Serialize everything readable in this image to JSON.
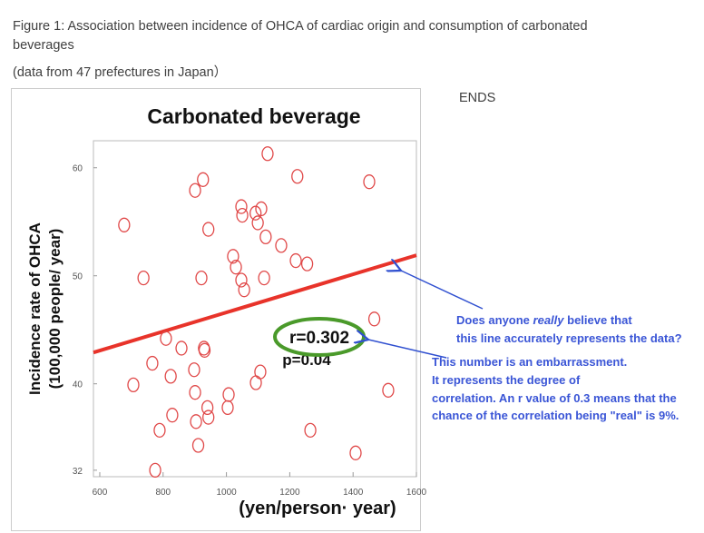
{
  "caption": [
    "Figure 1: Association between incidence of OHCA of cardiac origin and consumption of carbonated",
    "beverages"
  ],
  "source_note": "(data from 47 prefectures in Japan）",
  "side_note": "ENDS",
  "chart_data": {
    "type": "scatter",
    "title": "Carbonated beverage",
    "x_label": "(yen/person· year)",
    "y_label": [
      "Incidence rate of OHCA",
      "(100,000 people/ year)"
    ],
    "x": [
      677,
      738,
      1130,
      901,
      926,
      1224,
      1451,
      943,
      1047,
      1050,
      1092,
      1110,
      1099,
      1124,
      1173,
      1021,
      1030,
      1219,
      1255,
      921,
      1047,
      1056,
      1119,
      1467,
      809,
      858,
      931,
      929,
      766,
      824,
      706,
      898,
      1107,
      1093,
      1007,
      1004,
      940,
      943,
      829,
      904,
      789,
      911,
      1265,
      1511,
      1408,
      775,
      901
    ],
    "y": [
      54.7,
      49.8,
      61.3,
      57.9,
      58.9,
      59.2,
      58.7,
      54.3,
      56.4,
      55.6,
      55.8,
      56.2,
      54.9,
      53.6,
      52.8,
      51.8,
      50.8,
      51.4,
      51.1,
      49.8,
      49.6,
      48.7,
      49.8,
      46.0,
      44.2,
      43.3,
      43.1,
      43.3,
      41.9,
      40.7,
      39.9,
      41.3,
      41.1,
      40.1,
      39.0,
      37.8,
      37.8,
      36.9,
      37.1,
      36.5,
      35.7,
      34.3,
      35.7,
      39.4,
      33.6,
      32.0,
      39.2
    ],
    "color": "#e04848",
    "fit_line": {
      "x": [
        580,
        1600
      ],
      "y": [
        42.9,
        51.9
      ],
      "color": "#e8332a"
    },
    "xlim": [
      580,
      1600
    ],
    "ylim": [
      31.4,
      62.5
    ],
    "xticks": [
      600,
      800,
      1000,
      1200,
      1400,
      1600
    ],
    "yticks": [
      32,
      40,
      50,
      60
    ],
    "stats": [
      "r=0.302",
      "p=0.04"
    ],
    "question": {
      "before": "Does anyone ",
      "emphasis": "really",
      "after": " believe that",
      "line2": "this line accurately represents the data?"
    },
    "note": [
      "This number is an embarrassment.",
      "It represents the degree of",
      "correlation. An r value of 0.3 means that the",
      "chance of the correlation being \"real\" is 9%."
    ]
  }
}
